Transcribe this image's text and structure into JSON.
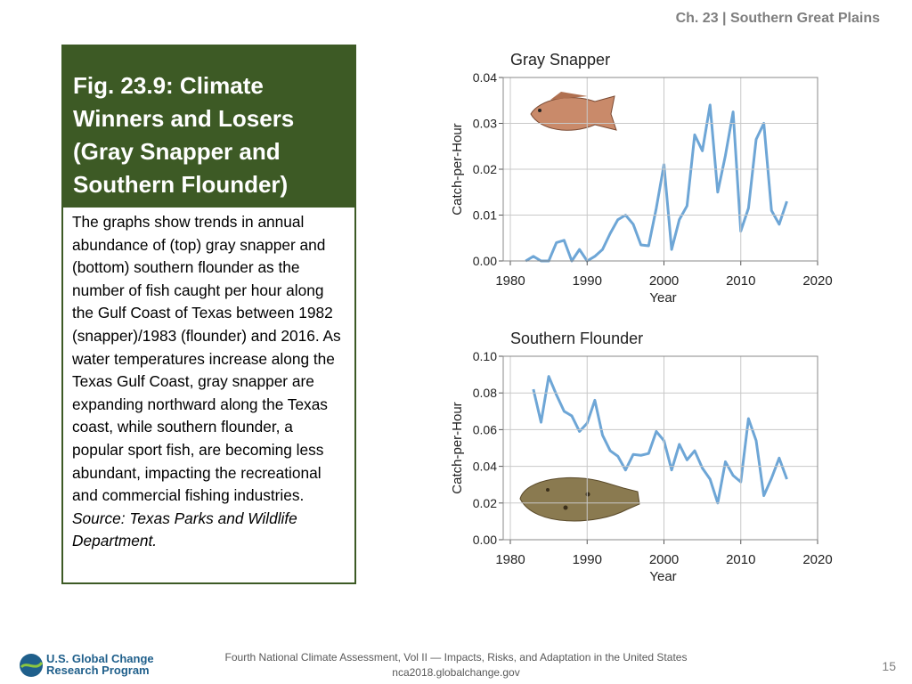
{
  "header": "Ch. 23 | Southern Great Plains",
  "figure": {
    "title": "Fig. 23.9: Climate Winners and Losers (Gray Snapper and Southern Flounder)",
    "body": "The graphs show trends in annual abundance of (top) gray snapper and (bottom) southern flounder as the number of fish caught per hour along the Gulf Coast of Texas between 1982 (snapper)/1983 (flounder) and 2016. As water temperatures increase along the Texas Gulf Coast, gray snapper are expanding northward along the Texas coast, while southern flounder, a popular sport fish, are becoming less abundant, impacting the recreational and commercial fishing industries.",
    "source": "Source: Texas Parks and Wildlife Department."
  },
  "chart_data": [
    {
      "type": "line",
      "title": "Gray Snapper",
      "x_label": "Year",
      "y_label": "Catch-per-Hour",
      "x": [
        1982,
        1983,
        1984,
        1985,
        1986,
        1987,
        1988,
        1989,
        1990,
        1991,
        1992,
        1993,
        1994,
        1995,
        1996,
        1997,
        1998,
        1999,
        2000,
        2001,
        2002,
        2003,
        2004,
        2005,
        2006,
        2007,
        2008,
        2009,
        2010,
        2011,
        2012,
        2013,
        2014,
        2015,
        2016
      ],
      "values": [
        0.0,
        0.001,
        0.0,
        0.0,
        0.004,
        0.0045,
        0.0,
        0.0025,
        0.0,
        0.001,
        0.0025,
        0.006,
        0.009,
        0.01,
        0.008,
        0.0035,
        0.0033,
        0.0115,
        0.021,
        0.0025,
        0.009,
        0.012,
        0.0275,
        0.024,
        0.034,
        0.015,
        0.023,
        0.0325,
        0.0065,
        0.0115,
        0.0265,
        0.03,
        0.011,
        0.008,
        0.013
      ],
      "color": "#6ea6d6",
      "grid": true,
      "xlim": [
        1980,
        2020
      ],
      "xticks": [
        1980,
        1990,
        2000,
        2010,
        2020
      ],
      "ylim": [
        0,
        0.04
      ],
      "yticks": [
        {
          "value": 0,
          "label": "0.00"
        },
        0.01,
        0.02,
        0.03,
        0.04
      ]
    },
    {
      "type": "line",
      "title": "Southern Flounder",
      "x_label": "Year",
      "y_label": "Catch-per-Hour",
      "x": [
        1983,
        1984,
        1985,
        1986,
        1987,
        1988,
        1989,
        1990,
        1991,
        1992,
        1993,
        1994,
        1995,
        1996,
        1997,
        1998,
        1999,
        2000,
        2001,
        2002,
        2003,
        2004,
        2005,
        2006,
        2007,
        2008,
        2009,
        2010,
        2011,
        2012,
        2013,
        2014,
        2015,
        2016
      ],
      "values": [
        0.082,
        0.064,
        0.089,
        0.079,
        0.07,
        0.0675,
        0.059,
        0.0635,
        0.076,
        0.057,
        0.0485,
        0.0455,
        0.038,
        0.0465,
        0.046,
        0.047,
        0.059,
        0.054,
        0.038,
        0.052,
        0.0435,
        0.0485,
        0.039,
        0.033,
        0.02,
        0.0425,
        0.035,
        0.0315,
        0.066,
        0.054,
        0.024,
        0.0335,
        0.0445,
        0.033
      ],
      "color": "#6ea6d6",
      "grid": true,
      "xlim": [
        1980,
        2020
      ],
      "xticks": [
        1980,
        1990,
        2000,
        2010,
        2020
      ],
      "ylim": [
        0,
        0.1
      ],
      "yticks": [
        {
          "value": 0,
          "label": "0.00"
        },
        0.02,
        0.04,
        0.06,
        0.08,
        {
          "value": 0.1,
          "label": "0.10"
        }
      ]
    }
  ],
  "footer": {
    "line1": "Fourth National Climate Assessment, Vol II — Impacts, Risks, and Adaptation in the United States",
    "line2": "nca2018.globalchange.gov",
    "page": "15"
  },
  "logo": {
    "lines": [
      "U.S. Global Change",
      "Research Program"
    ]
  }
}
